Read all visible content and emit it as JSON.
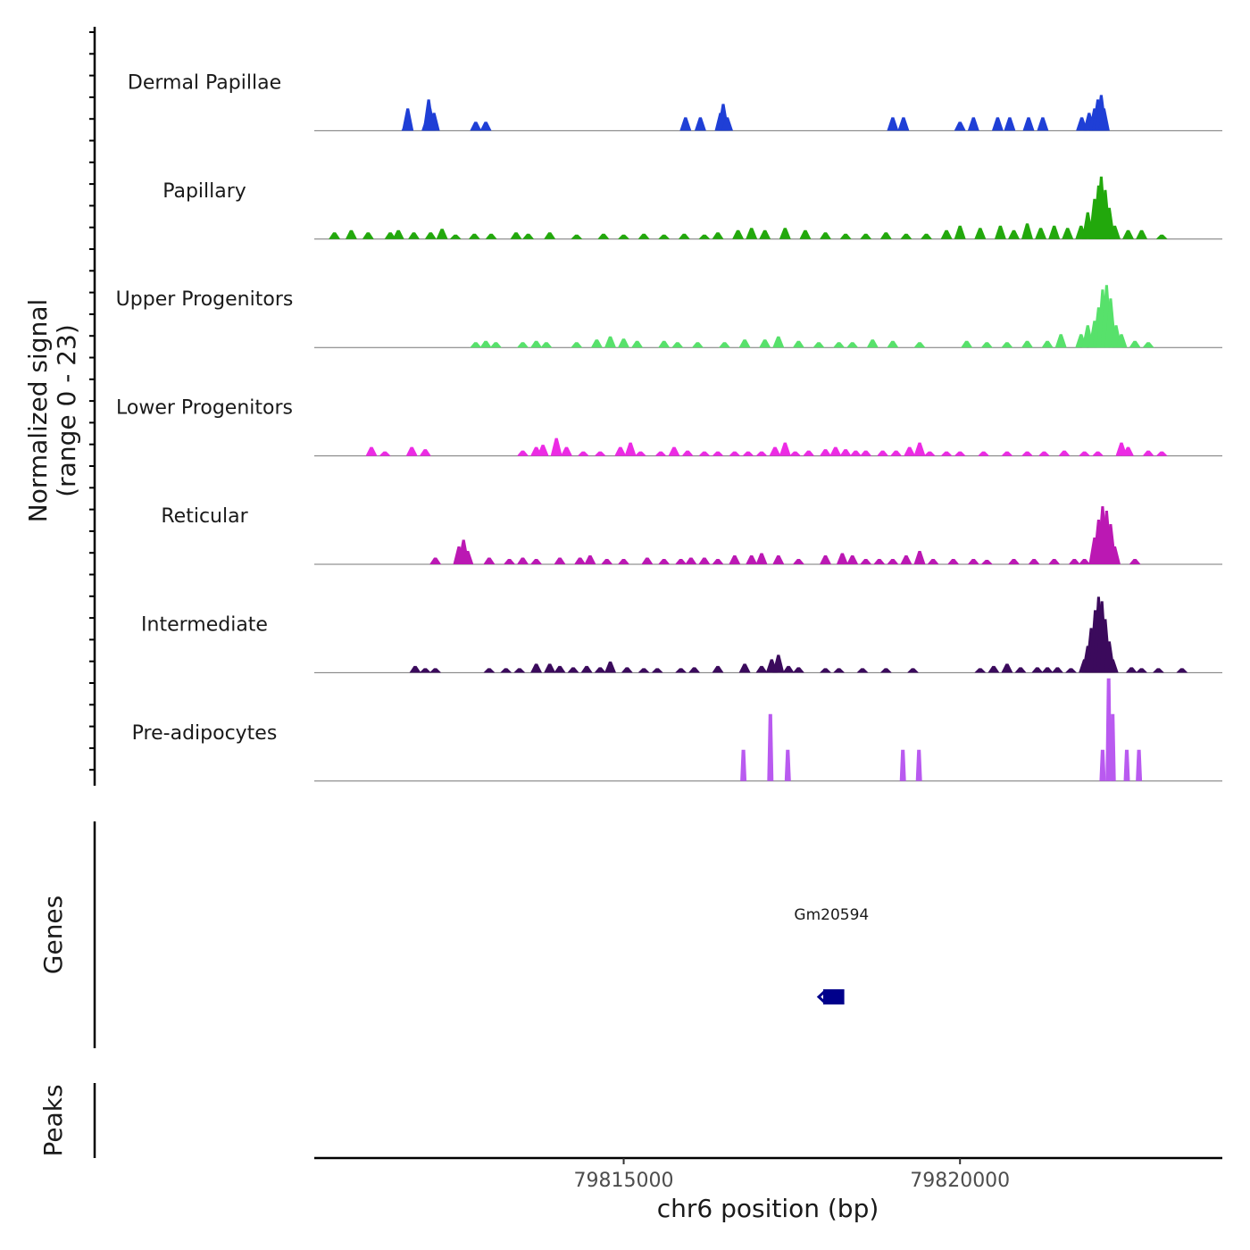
{
  "y_axis_title": [
    "Normalized signal",
    "(range 0 - 23)"
  ],
  "genes_label": "Genes",
  "peaks_label": "Peaks",
  "x_axis_title": "chr6 position (bp)",
  "x_ticks": [
    {
      "value": 79815000,
      "label": "79815000"
    },
    {
      "value": 79820000,
      "label": "79820000"
    }
  ],
  "chart_data": {
    "type": "area",
    "title": "",
    "xlabel": "chr6 position (bp)",
    "ylabel": "Normalized signal (range 0 - 23)",
    "xlim": [
      79810400,
      79823900
    ],
    "ylim": [
      0,
      23
    ],
    "grid": false,
    "legend": "none",
    "series": [
      {
        "name": "Dermal Papillae",
        "color": "#1f3fd6",
        "peaks": [
          [
            79811790,
            5
          ],
          [
            79811780,
            2
          ],
          [
            79812100,
            7
          ],
          [
            79812120,
            5
          ],
          [
            79812080,
            3
          ],
          [
            79812180,
            4
          ],
          [
            79812800,
            2
          ],
          [
            79812950,
            2
          ],
          [
            79815920,
            3
          ],
          [
            79816140,
            3
          ],
          [
            79816440,
            4
          ],
          [
            79816480,
            6
          ],
          [
            79816540,
            3
          ],
          [
            79819000,
            3
          ],
          [
            79819160,
            3
          ],
          [
            79820000,
            2
          ],
          [
            79820200,
            3
          ],
          [
            79820560,
            3
          ],
          [
            79820740,
            3
          ],
          [
            79821020,
            3
          ],
          [
            79821230,
            3
          ],
          [
            79821810,
            3
          ],
          [
            79821920,
            4
          ],
          [
            79822000,
            5
          ],
          [
            79822050,
            7
          ],
          [
            79822100,
            8
          ],
          [
            79822140,
            5
          ]
        ]
      },
      {
        "name": "Papillary",
        "color": "#22a80c",
        "peaks": [
          [
            79810700,
            1.5
          ],
          [
            79810950,
            2
          ],
          [
            79811200,
            1.5
          ],
          [
            79811530,
            1.5
          ],
          [
            79811650,
            2
          ],
          [
            79811880,
            1.5
          ],
          [
            79812130,
            1.5
          ],
          [
            79812300,
            2.3
          ],
          [
            79812500,
            1
          ],
          [
            79812780,
            1.2
          ],
          [
            79813030,
            1.2
          ],
          [
            79813400,
            1.5
          ],
          [
            79813580,
            1.2
          ],
          [
            79813900,
            1.5
          ],
          [
            79814300,
            1
          ],
          [
            79814700,
            1.2
          ],
          [
            79815000,
            1
          ],
          [
            79815300,
            1.2
          ],
          [
            79815600,
            1
          ],
          [
            79815900,
            1.2
          ],
          [
            79816200,
            1
          ],
          [
            79816400,
            1.5
          ],
          [
            79816700,
            2
          ],
          [
            79816900,
            2.5
          ],
          [
            79817100,
            2
          ],
          [
            79817400,
            2.5
          ],
          [
            79817700,
            2
          ],
          [
            79818000,
            1.5
          ],
          [
            79818300,
            1.2
          ],
          [
            79818600,
            1.2
          ],
          [
            79818900,
            1.5
          ],
          [
            79819200,
            1.2
          ],
          [
            79819500,
            1.2
          ],
          [
            79819800,
            2
          ],
          [
            79820000,
            3
          ],
          [
            79820300,
            2.5
          ],
          [
            79820600,
            3
          ],
          [
            79820800,
            2
          ],
          [
            79821000,
            3.5
          ],
          [
            79821200,
            2.5
          ],
          [
            79821400,
            3
          ],
          [
            79821600,
            2.5
          ],
          [
            79821800,
            3
          ],
          [
            79821900,
            6
          ],
          [
            79822000,
            9
          ],
          [
            79822060,
            12
          ],
          [
            79822100,
            14
          ],
          [
            79822160,
            11
          ],
          [
            79822220,
            7
          ],
          [
            79822300,
            3
          ],
          [
            79822500,
            2
          ],
          [
            79822700,
            2
          ],
          [
            79823000,
            1
          ]
        ]
      },
      {
        "name": "Upper Progenitors",
        "color": "#57e16b",
        "peaks": [
          [
            79812800,
            1.2
          ],
          [
            79812950,
            1.5
          ],
          [
            79813100,
            1.2
          ],
          [
            79813500,
            1.2
          ],
          [
            79813700,
            1.5
          ],
          [
            79813850,
            1.2
          ],
          [
            79814300,
            1.2
          ],
          [
            79814600,
            1.8
          ],
          [
            79814800,
            2.5
          ],
          [
            79815000,
            2
          ],
          [
            79815200,
            1.5
          ],
          [
            79815600,
            1.5
          ],
          [
            79815800,
            1.2
          ],
          [
            79816100,
            1.2
          ],
          [
            79816500,
            1.2
          ],
          [
            79816800,
            1.8
          ],
          [
            79817100,
            1.8
          ],
          [
            79817300,
            2.5
          ],
          [
            79817600,
            1.5
          ],
          [
            79817900,
            1.2
          ],
          [
            79818200,
            1.2
          ],
          [
            79818400,
            1.2
          ],
          [
            79818700,
            1.8
          ],
          [
            79819000,
            1.5
          ],
          [
            79819400,
            1.2
          ],
          [
            79820100,
            1.5
          ],
          [
            79820400,
            1.2
          ],
          [
            79820700,
            1.2
          ],
          [
            79821000,
            1.5
          ],
          [
            79821300,
            1.5
          ],
          [
            79821500,
            3
          ],
          [
            79821800,
            3
          ],
          [
            79821900,
            5
          ],
          [
            79822000,
            6
          ],
          [
            79822060,
            9
          ],
          [
            79822120,
            13
          ],
          [
            79822180,
            14
          ],
          [
            79822240,
            11
          ],
          [
            79822320,
            5
          ],
          [
            79822400,
            3
          ],
          [
            79822600,
            1.5
          ],
          [
            79822800,
            1.2
          ]
        ]
      },
      {
        "name": "Lower Progenitors",
        "color": "#ec2be4",
        "peaks": [
          [
            79811250,
            2
          ],
          [
            79811450,
            1
          ],
          [
            79811850,
            2
          ],
          [
            79812050,
            1.5
          ],
          [
            79813500,
            1.2
          ],
          [
            79813700,
            2
          ],
          [
            79813800,
            2.5
          ],
          [
            79814000,
            4
          ],
          [
            79814150,
            2
          ],
          [
            79814400,
            1
          ],
          [
            79814650,
            1
          ],
          [
            79814950,
            2
          ],
          [
            79815100,
            3
          ],
          [
            79815250,
            1
          ],
          [
            79815550,
            1
          ],
          [
            79815750,
            2
          ],
          [
            79815950,
            1.2
          ],
          [
            79816200,
            1
          ],
          [
            79816400,
            1
          ],
          [
            79816650,
            1
          ],
          [
            79816850,
            1
          ],
          [
            79817050,
            1
          ],
          [
            79817250,
            2
          ],
          [
            79817400,
            3
          ],
          [
            79817550,
            1
          ],
          [
            79817750,
            1.2
          ],
          [
            79818000,
            1.5
          ],
          [
            79818150,
            2
          ],
          [
            79818300,
            1.5
          ],
          [
            79818450,
            1.2
          ],
          [
            79818600,
            1.2
          ],
          [
            79818850,
            1.2
          ],
          [
            79819050,
            1.2
          ],
          [
            79819250,
            2
          ],
          [
            79819400,
            3
          ],
          [
            79819550,
            1
          ],
          [
            79819800,
            1
          ],
          [
            79820000,
            1
          ],
          [
            79820350,
            1
          ],
          [
            79820700,
            1
          ],
          [
            79821000,
            1
          ],
          [
            79821250,
            1
          ],
          [
            79821550,
            1.2
          ],
          [
            79821850,
            1
          ],
          [
            79822050,
            1
          ],
          [
            79822400,
            3
          ],
          [
            79822500,
            2
          ],
          [
            79822800,
            1.2
          ],
          [
            79823000,
            1
          ]
        ]
      },
      {
        "name": "Reticular",
        "color": "#bb18b3",
        "peaks": [
          [
            79812200,
            1.5
          ],
          [
            79812550,
            4
          ],
          [
            79812620,
            5.5
          ],
          [
            79812680,
            3
          ],
          [
            79813000,
            1.5
          ],
          [
            79813300,
            1.2
          ],
          [
            79813500,
            1.5
          ],
          [
            79813700,
            1.2
          ],
          [
            79814050,
            1.5
          ],
          [
            79814350,
            1.5
          ],
          [
            79814500,
            2
          ],
          [
            79814750,
            1.2
          ],
          [
            79815000,
            1.2
          ],
          [
            79815350,
            1.5
          ],
          [
            79815600,
            1.2
          ],
          [
            79815850,
            1.2
          ],
          [
            79816000,
            1.5
          ],
          [
            79816200,
            1.5
          ],
          [
            79816400,
            1.2
          ],
          [
            79816650,
            2
          ],
          [
            79816900,
            2
          ],
          [
            79817050,
            2.5
          ],
          [
            79817300,
            2
          ],
          [
            79817600,
            1.2
          ],
          [
            79818000,
            2
          ],
          [
            79818250,
            2.5
          ],
          [
            79818400,
            2
          ],
          [
            79818600,
            1.2
          ],
          [
            79818800,
            1.2
          ],
          [
            79819000,
            1.2
          ],
          [
            79819200,
            2
          ],
          [
            79819400,
            3
          ],
          [
            79819600,
            1.2
          ],
          [
            79819900,
            1.2
          ],
          [
            79820200,
            1.2
          ],
          [
            79820400,
            1
          ],
          [
            79820800,
            1.2
          ],
          [
            79821100,
            1.2
          ],
          [
            79821400,
            1.2
          ],
          [
            79821700,
            1.2
          ],
          [
            79821850,
            1.2
          ],
          [
            79822000,
            6
          ],
          [
            79822060,
            10
          ],
          [
            79822120,
            13
          ],
          [
            79822180,
            12
          ],
          [
            79822240,
            9
          ],
          [
            79822300,
            4
          ],
          [
            79822600,
            1.2
          ]
        ]
      },
      {
        "name": "Intermediate",
        "color": "#3b0a5c",
        "peaks": [
          [
            79811900,
            1.5
          ],
          [
            79812050,
            1
          ],
          [
            79812200,
            1
          ],
          [
            79813000,
            1
          ],
          [
            79813250,
            1
          ],
          [
            79813450,
            1
          ],
          [
            79813700,
            2
          ],
          [
            79813900,
            2
          ],
          [
            79814050,
            1.5
          ],
          [
            79814250,
            1.2
          ],
          [
            79814450,
            1.5
          ],
          [
            79814650,
            1.2
          ],
          [
            79814800,
            2.5
          ],
          [
            79815050,
            1.2
          ],
          [
            79815300,
            1
          ],
          [
            79815500,
            1
          ],
          [
            79815850,
            1
          ],
          [
            79816050,
            1.2
          ],
          [
            79816400,
            1.5
          ],
          [
            79816800,
            2
          ],
          [
            79817050,
            1.5
          ],
          [
            79817200,
            3
          ],
          [
            79817300,
            4
          ],
          [
            79817450,
            1.5
          ],
          [
            79817600,
            1.2
          ],
          [
            79818000,
            1
          ],
          [
            79818200,
            1
          ],
          [
            79818550,
            1
          ],
          [
            79818900,
            1
          ],
          [
            79819300,
            1
          ],
          [
            79820300,
            1
          ],
          [
            79820500,
            1.5
          ],
          [
            79820700,
            2
          ],
          [
            79820900,
            1.2
          ],
          [
            79821150,
            1.2
          ],
          [
            79821300,
            1.2
          ],
          [
            79821450,
            1.2
          ],
          [
            79821650,
            1
          ],
          [
            79821850,
            3
          ],
          [
            79821900,
            6
          ],
          [
            79821950,
            10
          ],
          [
            79822010,
            14
          ],
          [
            79822060,
            17
          ],
          [
            79822110,
            16
          ],
          [
            79822160,
            12
          ],
          [
            79822220,
            7
          ],
          [
            79822270,
            3
          ],
          [
            79822550,
            1.2
          ],
          [
            79822700,
            1
          ],
          [
            79822950,
            1
          ],
          [
            79823300,
            1
          ]
        ]
      },
      {
        "name": "Pre-adipocytes",
        "color": "#b95af0",
        "peaks": [
          [
            79816780,
            7
          ],
          [
            79817180,
            15
          ],
          [
            79817440,
            7
          ],
          [
            79819150,
            7
          ],
          [
            79819390,
            7
          ],
          [
            79822120,
            7
          ],
          [
            79822210,
            23
          ],
          [
            79822270,
            15
          ],
          [
            79822480,
            7
          ],
          [
            79822660,
            7
          ]
        ]
      }
    ],
    "genes": [
      {
        "name": "Gm20594",
        "start": 79817900,
        "end": 79818280,
        "strand": "-"
      }
    ]
  }
}
